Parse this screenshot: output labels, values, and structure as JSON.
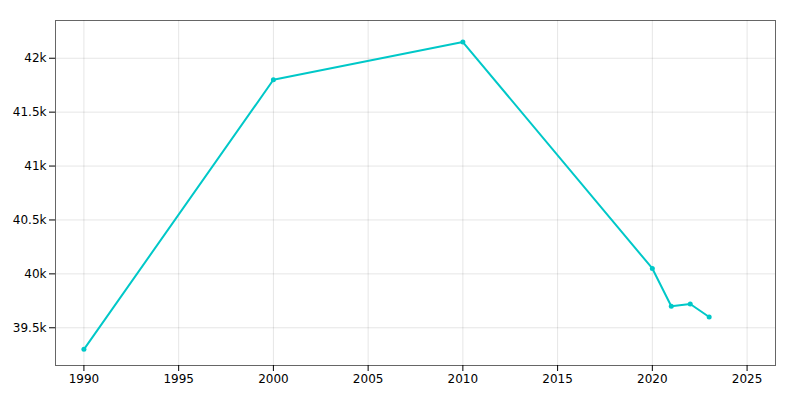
{
  "chart_data": {
    "type": "line",
    "x": [
      1990,
      2000,
      2010,
      2020,
      2021,
      2022,
      2023
    ],
    "values": [
      39300,
      41800,
      42150,
      40050,
      39700,
      39720,
      39600
    ],
    "color": "#00c8c8",
    "marker": "circle",
    "line_style": "solid",
    "xlim": [
      1988.5,
      2026.5
    ],
    "ylim": [
      39150,
      42350
    ],
    "xticks": [
      1990,
      1995,
      2000,
      2005,
      2010,
      2015,
      2020,
      2025
    ],
    "yticks": [
      {
        "value": 39500,
        "label": "39.5k"
      },
      {
        "value": 40000,
        "label": "40k"
      },
      {
        "value": 40500,
        "label": "40.5k"
      },
      {
        "value": 41000,
        "label": "41k"
      },
      {
        "value": 41500,
        "label": "41.5k"
      },
      {
        "value": 42000,
        "label": "42k"
      }
    ],
    "grid": true
  }
}
